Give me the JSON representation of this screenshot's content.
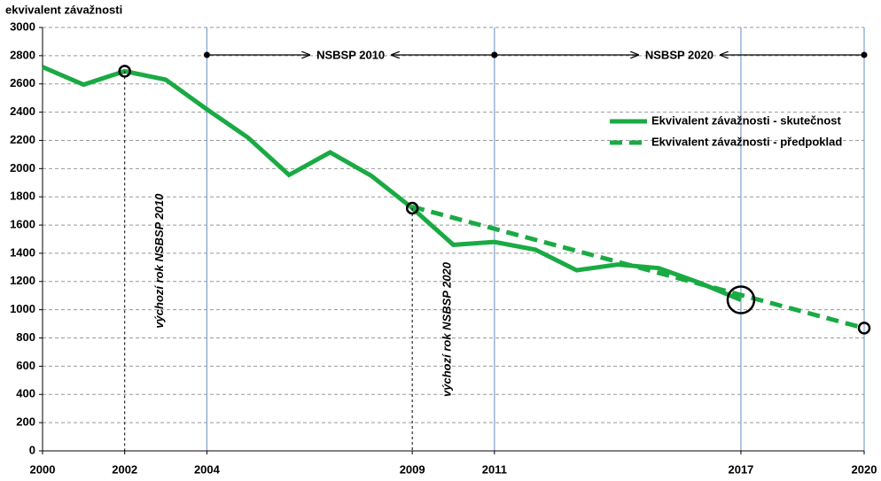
{
  "chart_data": {
    "type": "line",
    "title": "ekvivalent závažnosti",
    "xlim": [
      2000,
      2020
    ],
    "xticks": [
      2000,
      2002,
      2004,
      2009,
      2011,
      2017,
      2020
    ],
    "ylim": [
      0,
      3000
    ],
    "yticks": [
      0,
      200,
      400,
      600,
      800,
      1000,
      1200,
      1400,
      1600,
      1800,
      2000,
      2200,
      2400,
      2600,
      2800,
      3000
    ],
    "grid": true,
    "legend": "right",
    "series": [
      {
        "name": "Ekvivalent závažnosti - skutečnost",
        "color": "#1aaa44",
        "style": "solid",
        "x": [
          2000,
          2001,
          2002,
          2003,
          2004,
          2005,
          2006,
          2007,
          2008,
          2009,
          2010,
          2011,
          2012,
          2013,
          2014,
          2015,
          2016,
          2017
        ],
        "values": [
          2720,
          2595,
          2690,
          2630,
          2420,
          2220,
          1955,
          2115,
          1950,
          1720,
          1460,
          1480,
          1425,
          1280,
          1320,
          1295,
          1190,
          1070
        ]
      },
      {
        "name": "Ekvivalent závažnosti - předpoklad",
        "color": "#1aaa44",
        "style": "dashed",
        "x": [
          2009,
          2020
        ],
        "values": [
          1730,
          870
        ]
      }
    ],
    "vlines": [
      2004,
      2011,
      2017,
      2020
    ],
    "periods": [
      {
        "label": "NSBSP 2010",
        "start": 2004,
        "end": 2011
      },
      {
        "label": "NSBSP 2020",
        "start": 2011,
        "end": 2020
      }
    ],
    "annotations": [
      {
        "text": "výchozí rok NSBSP 2010",
        "x": 2002
      },
      {
        "text": "výchozí rok NSBSP 2020",
        "x": 2009
      }
    ]
  }
}
